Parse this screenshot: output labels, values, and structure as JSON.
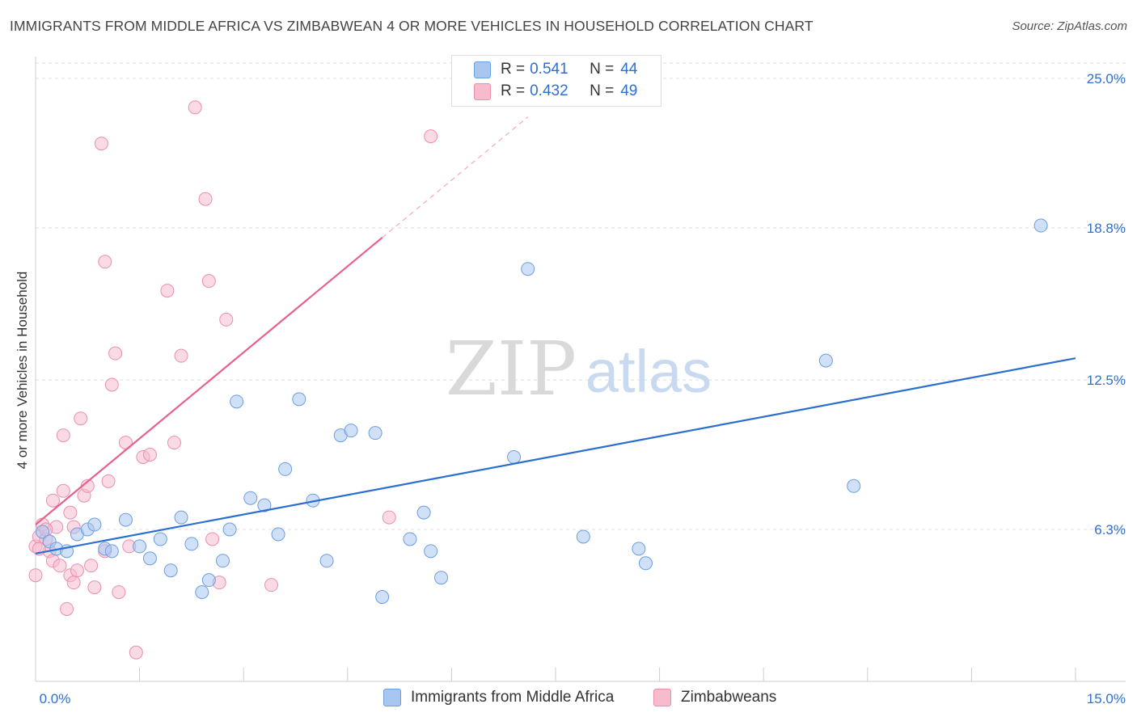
{
  "title": "IMMIGRANTS FROM MIDDLE AFRICA VS ZIMBABWEAN 4 OR MORE VEHICLES IN HOUSEHOLD CORRELATION CHART",
  "source": "Source: ZipAtlas.com",
  "watermark": {
    "zip": "ZIP",
    "atlas": "atlas"
  },
  "colors": {
    "blue_fill": "#a9c6f0",
    "blue_stroke": "#6c9ee0",
    "blue_line": "#2a6ed0",
    "pink_fill": "#f6bccd",
    "pink_stroke": "#ec8fab",
    "pink_line": "#e8608c",
    "value_text": "#2f6fd0",
    "grid": "#dddddd"
  },
  "legend_top": [
    {
      "r_label": "R =",
      "r_value": "0.541",
      "n_label": "N =",
      "n_value": "44"
    },
    {
      "r_label": "R =",
      "r_value": "0.432",
      "n_label": "N =",
      "n_value": "49"
    }
  ],
  "legend_bottom": [
    "Immigrants from Middle Africa",
    "Zimbabweans"
  ],
  "chart_data": {
    "type": "scatter",
    "title": "IMMIGRANTS FROM MIDDLE AFRICA VS ZIMBABWEAN 4 OR MORE VEHICLES IN HOUSEHOLD CORRELATION CHART",
    "xlabel": "",
    "ylabel": "4 or more Vehicles in Household",
    "xlim": [
      0,
      15
    ],
    "ylim": [
      0,
      25
    ],
    "x_tick_labels": [
      "0.0%",
      "15.0%"
    ],
    "y_ticks": [
      6.3,
      12.5,
      18.8,
      25.0
    ],
    "y_tick_labels": [
      "6.3%",
      "12.5%",
      "18.8%",
      "25.0%"
    ],
    "grid": true,
    "legend_placement": "top-center",
    "series": [
      {
        "name": "Immigrants from Middle Africa",
        "r": 0.541,
        "n": 44,
        "trend": {
          "x0": 0.0,
          "y0": 5.3,
          "x1": 15.0,
          "y1": 13.4,
          "dashed_to": null
        },
        "points": [
          [
            0.1,
            6.2
          ],
          [
            0.2,
            5.8
          ],
          [
            0.3,
            5.5
          ],
          [
            0.45,
            5.4
          ],
          [
            0.6,
            6.1
          ],
          [
            0.75,
            6.3
          ],
          [
            0.85,
            6.5
          ],
          [
            1.0,
            5.5
          ],
          [
            1.1,
            5.4
          ],
          [
            1.3,
            6.7
          ],
          [
            1.5,
            5.6
          ],
          [
            1.65,
            5.1
          ],
          [
            1.8,
            5.9
          ],
          [
            1.95,
            4.6
          ],
          [
            2.1,
            6.8
          ],
          [
            2.25,
            5.7
          ],
          [
            2.4,
            3.7
          ],
          [
            2.5,
            4.2
          ],
          [
            2.7,
            5.0
          ],
          [
            2.8,
            6.3
          ],
          [
            2.9,
            11.6
          ],
          [
            3.1,
            7.6
          ],
          [
            3.3,
            7.3
          ],
          [
            3.5,
            6.1
          ],
          [
            3.6,
            8.8
          ],
          [
            3.8,
            11.7
          ],
          [
            4.0,
            7.5
          ],
          [
            4.2,
            5.0
          ],
          [
            4.4,
            10.2
          ],
          [
            4.55,
            10.4
          ],
          [
            4.9,
            10.3
          ],
          [
            5.0,
            3.5
          ],
          [
            5.4,
            5.9
          ],
          [
            5.6,
            7.0
          ],
          [
            5.7,
            5.4
          ],
          [
            5.85,
            4.3
          ],
          [
            6.9,
            9.3
          ],
          [
            7.1,
            17.1
          ],
          [
            7.9,
            6.0
          ],
          [
            8.7,
            5.5
          ],
          [
            8.8,
            4.9
          ],
          [
            11.4,
            13.3
          ],
          [
            11.8,
            8.1
          ],
          [
            14.5,
            18.9
          ]
        ]
      },
      {
        "name": "Zimbabweans",
        "r": 0.432,
        "n": 49,
        "trend": {
          "x0": 0.0,
          "y0": 6.5,
          "x1": 5.0,
          "y1": 18.4,
          "dashed_to": {
            "x": 7.1,
            "y": 23.4
          }
        },
        "points": [
          [
            0.0,
            4.4
          ],
          [
            0.0,
            5.6
          ],
          [
            0.05,
            6.0
          ],
          [
            0.1,
            6.5
          ],
          [
            0.15,
            5.9
          ],
          [
            0.2,
            5.4
          ],
          [
            0.25,
            5.0
          ],
          [
            0.25,
            7.5
          ],
          [
            0.3,
            6.4
          ],
          [
            0.35,
            4.8
          ],
          [
            0.4,
            7.9
          ],
          [
            0.4,
            10.2
          ],
          [
            0.45,
            3.0
          ],
          [
            0.5,
            7.0
          ],
          [
            0.5,
            4.4
          ],
          [
            0.55,
            6.4
          ],
          [
            0.55,
            4.1
          ],
          [
            0.6,
            4.6
          ],
          [
            0.65,
            10.9
          ],
          [
            0.7,
            7.7
          ],
          [
            0.75,
            8.1
          ],
          [
            0.8,
            4.8
          ],
          [
            0.85,
            3.9
          ],
          [
            0.95,
            22.3
          ],
          [
            1.0,
            17.4
          ],
          [
            1.05,
            8.3
          ],
          [
            1.1,
            12.3
          ],
          [
            1.15,
            13.6
          ],
          [
            1.2,
            3.7
          ],
          [
            1.3,
            9.9
          ],
          [
            1.35,
            5.6
          ],
          [
            1.45,
            1.2
          ],
          [
            1.55,
            9.3
          ],
          [
            1.65,
            9.4
          ],
          [
            1.9,
            16.2
          ],
          [
            2.0,
            9.9
          ],
          [
            2.1,
            13.5
          ],
          [
            2.3,
            23.8
          ],
          [
            2.45,
            20.0
          ],
          [
            2.5,
            16.6
          ],
          [
            2.55,
            5.9
          ],
          [
            2.65,
            4.1
          ],
          [
            2.75,
            15.0
          ],
          [
            3.4,
            4.0
          ],
          [
            5.1,
            6.8
          ],
          [
            5.7,
            22.6
          ],
          [
            1.0,
            5.4
          ],
          [
            0.15,
            6.3
          ],
          [
            0.05,
            5.5
          ]
        ]
      }
    ]
  }
}
